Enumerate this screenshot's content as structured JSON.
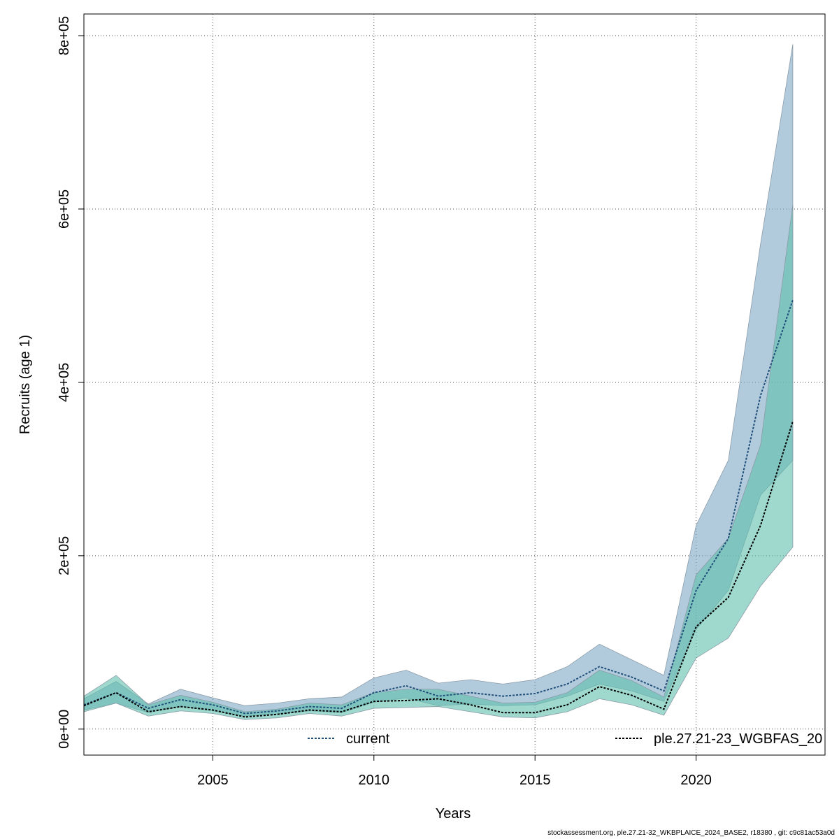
{
  "chart_data": {
    "type": "area",
    "title": "",
    "xlabel": "Years",
    "ylabel": "Recruits (age 1)",
    "xlim": [
      2001,
      2024
    ],
    "ylim": [
      -30000,
      825000
    ],
    "x_ticks": [
      {
        "value": 2005,
        "label": "2005"
      },
      {
        "value": 2010,
        "label": "2010"
      },
      {
        "value": 2015,
        "label": "2015"
      },
      {
        "value": 2020,
        "label": "2020"
      }
    ],
    "y_ticks": [
      {
        "value": 0,
        "label": "0e+00"
      },
      {
        "value": 200000,
        "label": "2e+05"
      },
      {
        "value": 400000,
        "label": "4e+05"
      },
      {
        "value": 600000,
        "label": "6e+05"
      },
      {
        "value": 800000,
        "label": "8e+05"
      }
    ],
    "grid": true,
    "legend_placement": "bottom",
    "series": [
      {
        "name": "current",
        "line_color": "#1f4e79",
        "band_color": "#7ea8c4",
        "x": [
          2001,
          2002,
          2003,
          2004,
          2005,
          2006,
          2007,
          2008,
          2009,
          2010,
          2011,
          2012,
          2013,
          2014,
          2015,
          2016,
          2017,
          2018,
          2019,
          2020,
          2021,
          2022,
          2023
        ],
        "mean": [
          28000,
          42000,
          24000,
          34000,
          28000,
          18000,
          21000,
          26000,
          24000,
          42000,
          50000,
          38000,
          42000,
          38000,
          41000,
          52000,
          72000,
          60000,
          44000,
          160000,
          220000,
          385000,
          495000
        ],
        "lower": [
          22000,
          30000,
          19000,
          26000,
          21000,
          15000,
          17000,
          21000,
          19000,
          31000,
          36000,
          27000,
          29000,
          27000,
          28000,
          38000,
          52000,
          44000,
          32000,
          115000,
          160000,
          270000,
          310000
        ],
        "upper": [
          35000,
          55000,
          29000,
          46000,
          36000,
          27000,
          30000,
          35000,
          37000,
          59000,
          68000,
          53000,
          57000,
          52000,
          57000,
          72000,
          98000,
          80000,
          62000,
          235000,
          310000,
          560000,
          790000
        ]
      },
      {
        "name": "ple.27.21-23_WGBFAS_20",
        "line_color": "#000000",
        "band_color": "#5fbfad",
        "x": [
          2001,
          2002,
          2003,
          2004,
          2005,
          2006,
          2007,
          2008,
          2009,
          2010,
          2011,
          2012,
          2013,
          2014,
          2015,
          2016,
          2017,
          2018,
          2019,
          2020,
          2021,
          2022,
          2023
        ],
        "mean": [
          27000,
          42000,
          20000,
          26000,
          22000,
          14000,
          17000,
          22000,
          20000,
          32000,
          33000,
          35000,
          28000,
          19000,
          19000,
          28000,
          49000,
          39000,
          23000,
          118000,
          152000,
          235000,
          355000
        ],
        "lower": [
          20000,
          30000,
          15000,
          21000,
          18000,
          11000,
          13000,
          18000,
          15000,
          24000,
          25000,
          26000,
          20000,
          14000,
          13000,
          20000,
          35000,
          28000,
          16000,
          82000,
          105000,
          165000,
          210000
        ],
        "upper": [
          38000,
          62000,
          28000,
          39000,
          31000,
          20000,
          23000,
          30000,
          28000,
          42000,
          46000,
          46000,
          38000,
          30000,
          31000,
          42000,
          68000,
          56000,
          37000,
          178000,
          220000,
          328000,
          605000
        ]
      }
    ]
  },
  "footer_text": "stockassessment.org, ple.27.21-32_WKBPLAICE_2024_BASE2, r18380 , git: c9c81ac53a0d"
}
